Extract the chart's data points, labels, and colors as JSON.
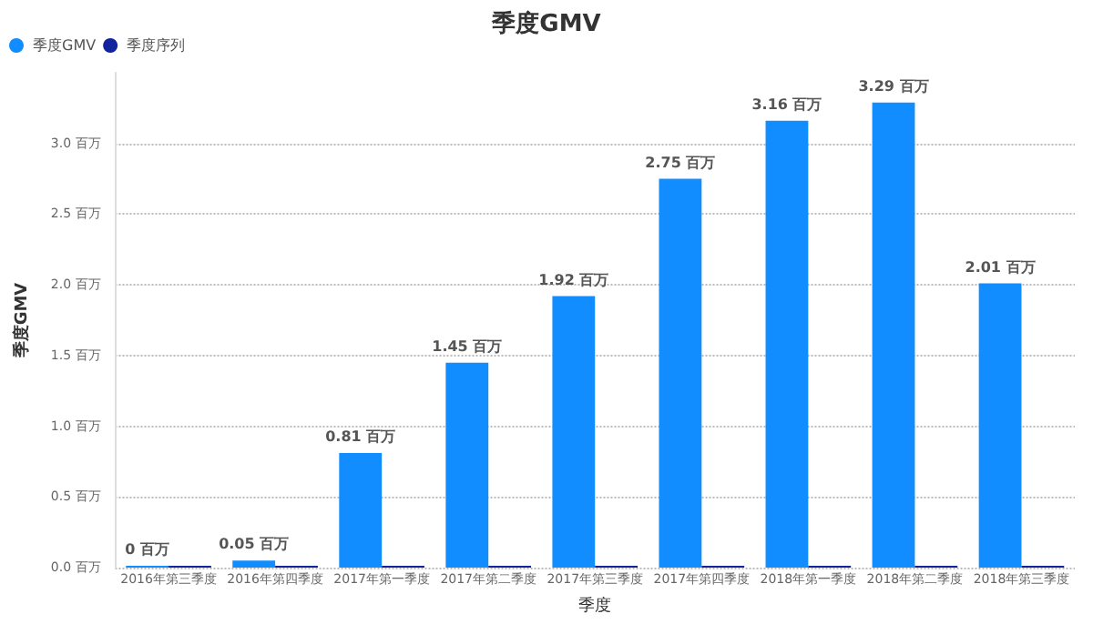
{
  "chart_data": {
    "type": "bar",
    "title": "季度GMV",
    "xlabel": "季度",
    "ylabel": "季度GMV",
    "categories": [
      "2016年第三季度",
      "2016年第四季度",
      "2017年第一季度",
      "2017年第二季度",
      "2017年第三季度",
      "2017年第四季度",
      "2018年第一季度",
      "2018年第二季度",
      "2018年第三季度"
    ],
    "series": [
      {
        "name": "季度GMV",
        "color": "#118dff",
        "values": [
          0,
          0.05,
          0.81,
          1.45,
          1.92,
          2.75,
          3.16,
          3.29,
          2.01
        ],
        "value_labels": [
          "0 百万",
          "0.05 百万",
          "0.81 百万",
          "1.45 百万",
          "1.92 百万",
          "2.75 百万",
          "3.16 百万",
          "3.29 百万",
          "2.01 百万"
        ]
      },
      {
        "name": "季度序列",
        "color": "#12239e",
        "values": [
          0,
          0,
          0,
          0,
          0,
          0,
          0,
          0,
          0
        ]
      }
    ],
    "ylim": [
      0,
      3.5
    ],
    "yticks": [
      {
        "value": 0,
        "label": "0.0 百万"
      },
      {
        "value": 0.5,
        "label": "0.5 百万"
      },
      {
        "value": 1,
        "label": "1.0 百万"
      },
      {
        "value": 1.5,
        "label": "1.5 百万"
      },
      {
        "value": 2,
        "label": "2.0 百万"
      },
      {
        "value": 2.5,
        "label": "2.5 百万"
      },
      {
        "value": 3,
        "label": "3.0 百万"
      }
    ],
    "grid": "y",
    "legend": "top left"
  }
}
